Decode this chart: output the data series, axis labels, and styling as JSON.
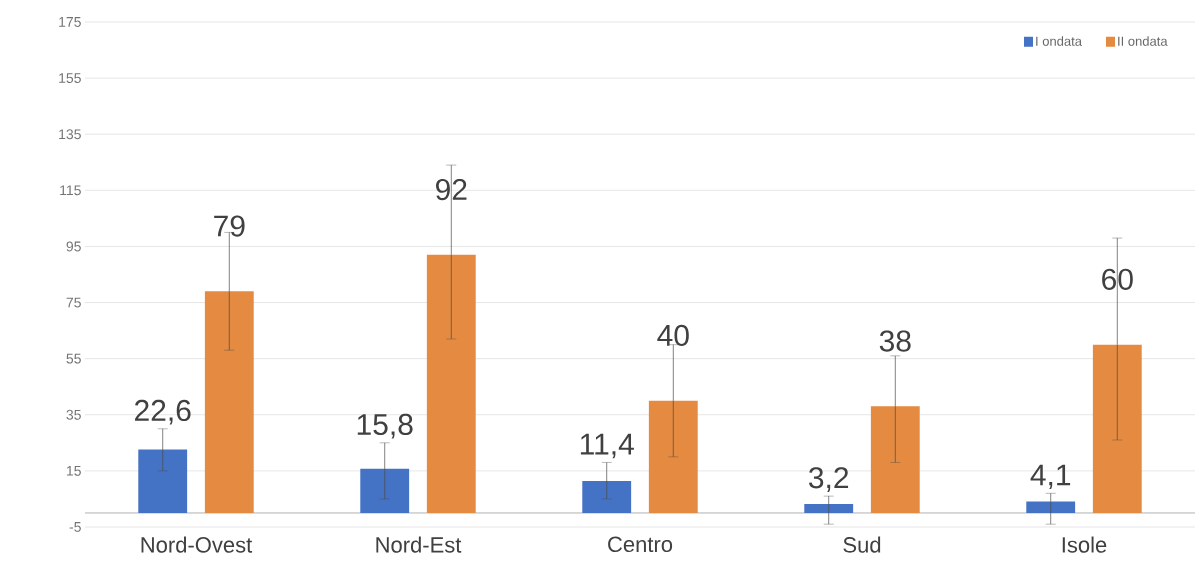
{
  "chart_data": {
    "type": "bar",
    "categories": [
      "Nord-Ovest",
      "Nord-Est",
      "Centro",
      "Sud",
      "Isole"
    ],
    "series": [
      {
        "name": "I ondata",
        "color": "#4472c4",
        "values": [
          22.6,
          15.8,
          11.4,
          3.2,
          4.1
        ],
        "value_labels": [
          "22,6",
          "15,8",
          "11,4",
          "3,2",
          "4,1"
        ],
        "errors": [
          [
            15,
            30
          ],
          [
            5,
            25
          ],
          [
            5,
            18
          ],
          [
            -4,
            6
          ],
          [
            -4,
            7
          ]
        ]
      },
      {
        "name": "II ondata",
        "color": "#e58a41",
        "values": [
          79,
          92,
          40,
          38,
          60
        ],
        "value_labels": [
          "79",
          "92",
          "40",
          "38",
          "60"
        ],
        "errors": [
          [
            58,
            100
          ],
          [
            62,
            124
          ],
          [
            20,
            60
          ],
          [
            18,
            56
          ],
          [
            26,
            98
          ]
        ]
      }
    ],
    "ylim": [
      -5,
      175
    ],
    "yticks": [
      -5,
      15,
      35,
      55,
      75,
      95,
      115,
      135,
      155,
      175
    ],
    "grid": "y",
    "legend": "top right"
  }
}
